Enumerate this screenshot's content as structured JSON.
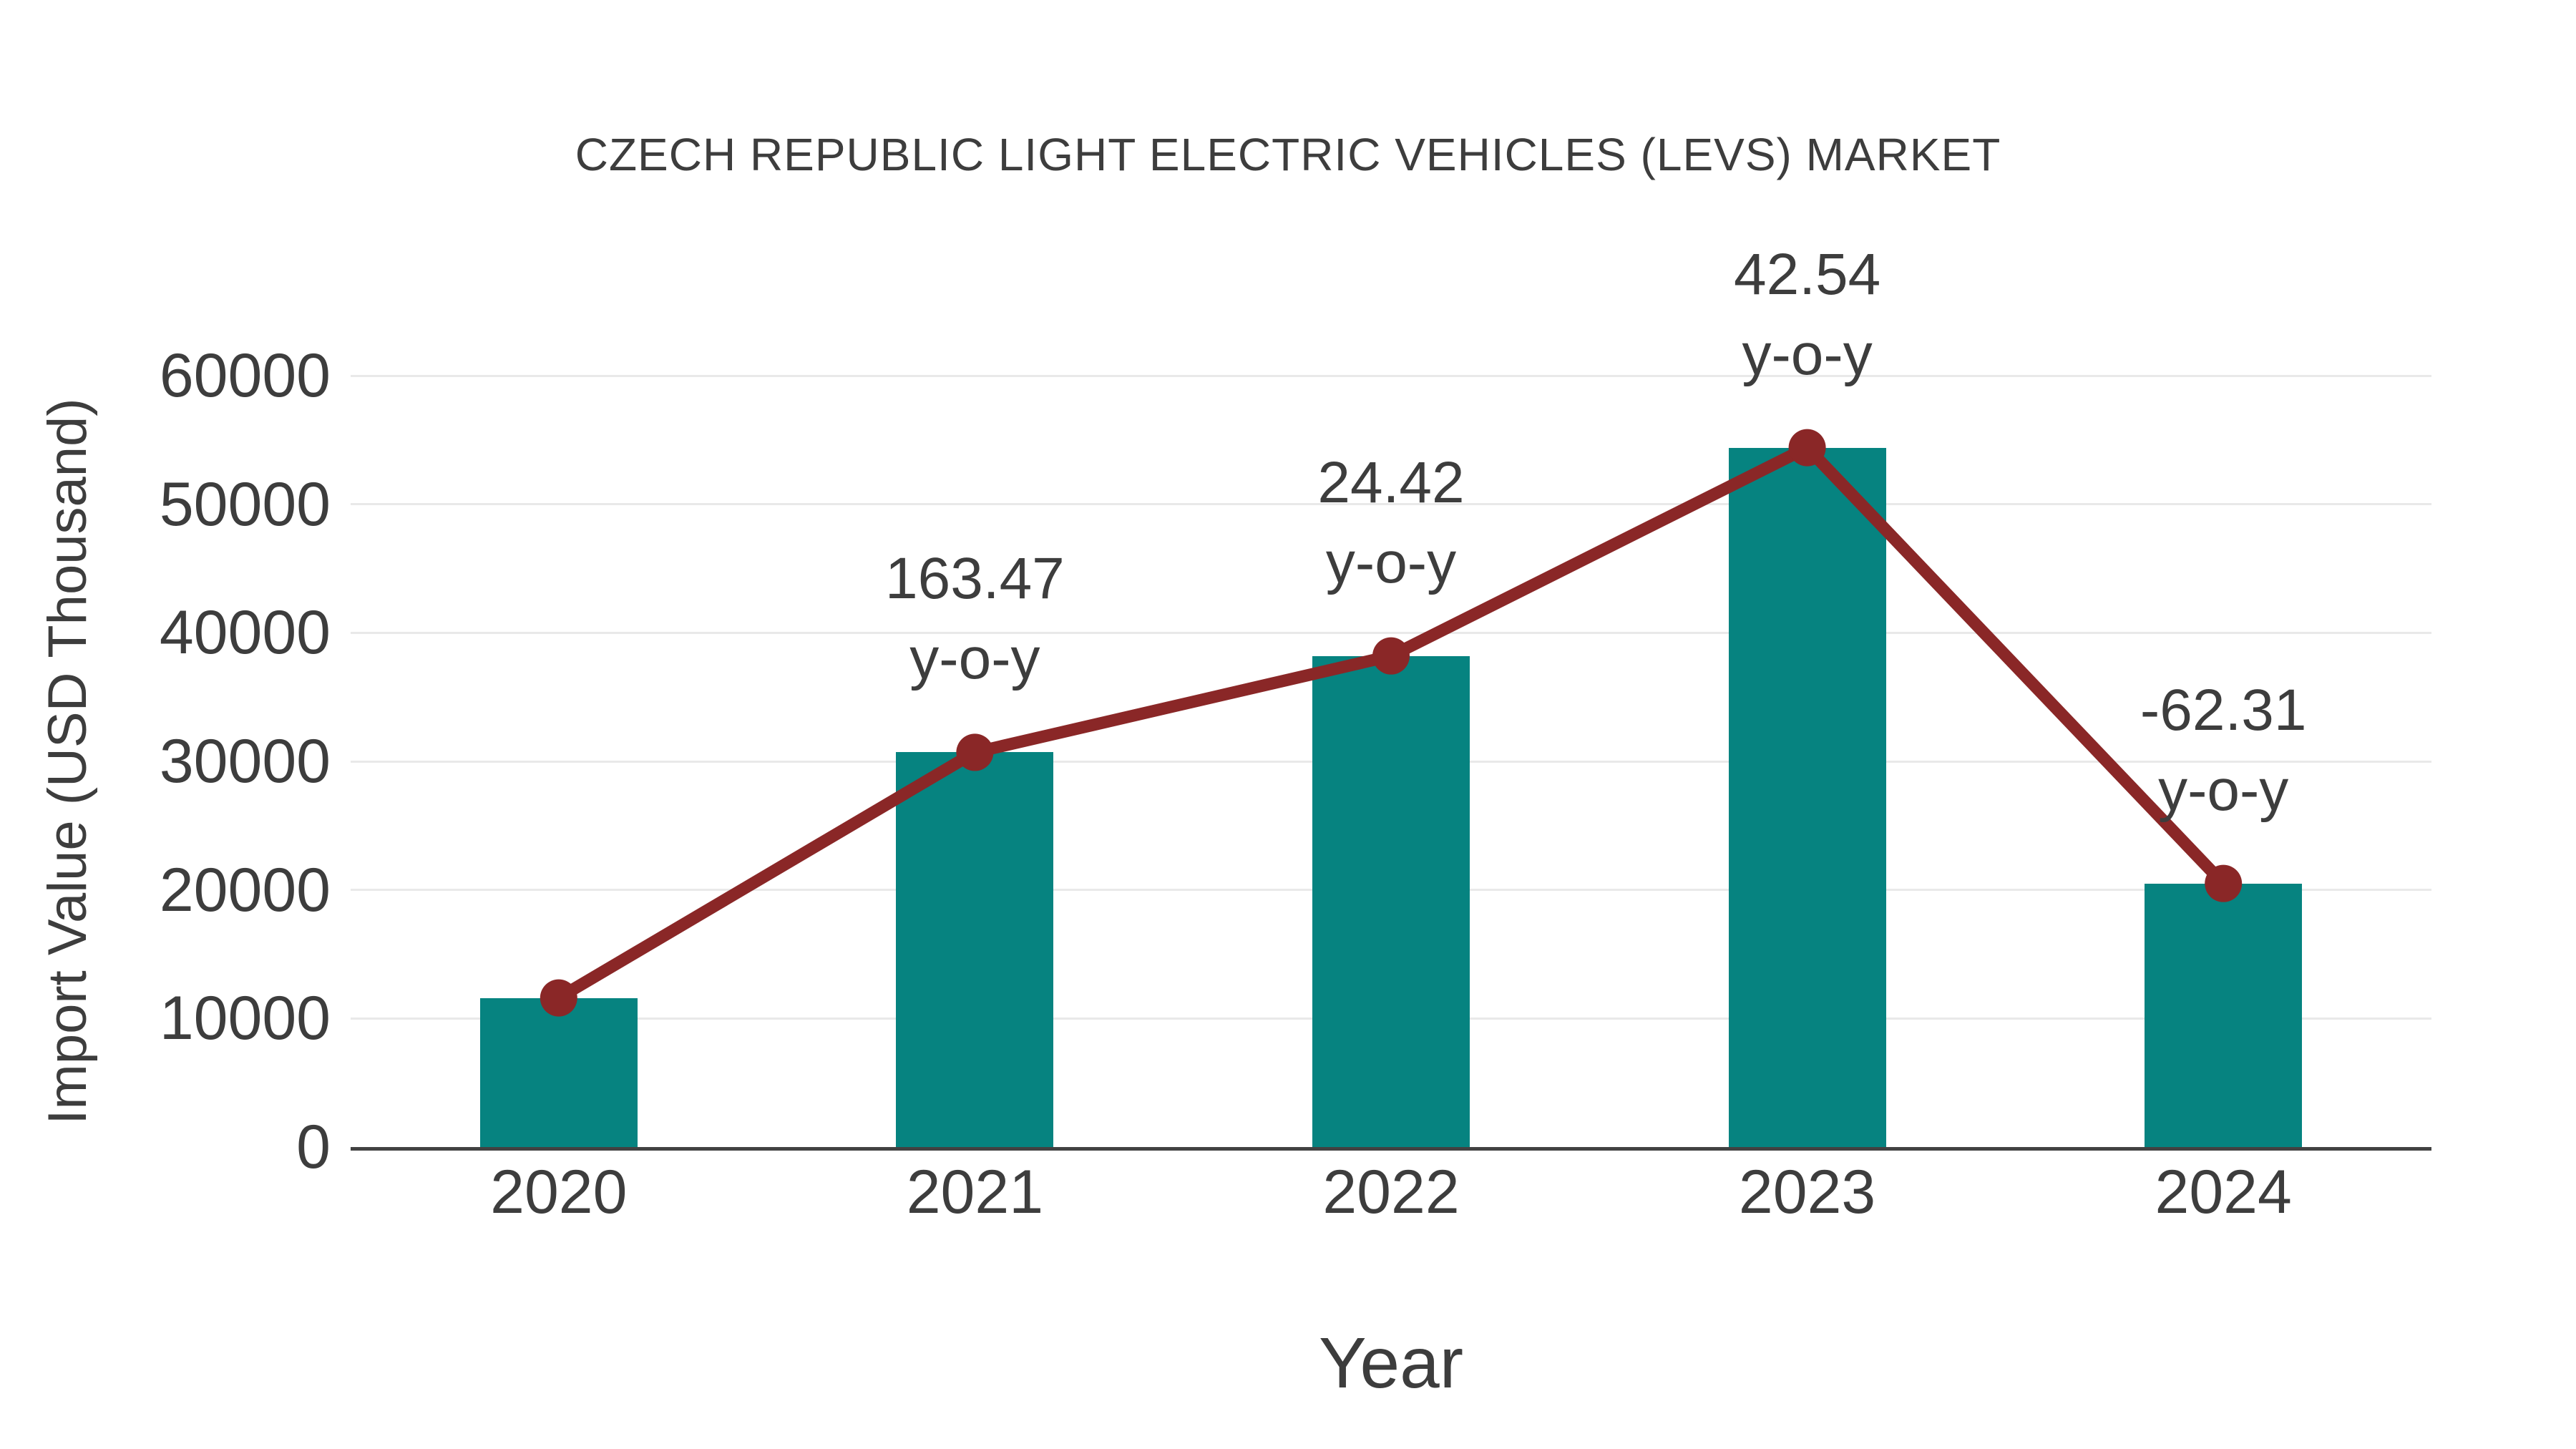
{
  "title": {
    "text": "CZECH REPUBLIC LIGHT ELECTRIC VEHICLES (LEVS) MARKET"
  },
  "axes": {
    "x_label": "Year",
    "y_label": "Import Value (USD Thousand)"
  },
  "colors": {
    "background": "#ffffff",
    "bar": "#068380",
    "line": "#8A2727",
    "marker": "#8A2727",
    "grid": "#e9e9e9",
    "axis_line": "#424242",
    "text": "#3d3d3d"
  },
  "chart_data": {
    "type": "bar",
    "title": "CZECH REPUBLIC LIGHT ELECTRIC VEHICLES (LEVS) MARKET",
    "xlabel": "Year",
    "ylabel": "Import Value (USD Thousand)",
    "categories": [
      "2020",
      "2021",
      "2022",
      "2023",
      "2024"
    ],
    "ylim": [
      0,
      60000
    ],
    "yticks": [
      0,
      10000,
      20000,
      30000,
      40000,
      50000,
      60000
    ],
    "grid": true,
    "legend_position": "none",
    "series": [
      {
        "name": "Import Value (USD Thousand)",
        "type": "bar",
        "color": "#068380",
        "values": [
          11600,
          30700,
          38200,
          54400,
          20500
        ]
      },
      {
        "name": "Import Value trend",
        "type": "line",
        "color": "#8A2727",
        "marker": "circle",
        "values": [
          11600,
          30700,
          38200,
          54400,
          20500
        ]
      }
    ],
    "yoy_percent": [
      null,
      163.47,
      24.42,
      42.54,
      -62.31
    ],
    "annotations": [
      {
        "category": "2021",
        "lines": [
          "163.47",
          "y-o-y"
        ]
      },
      {
        "category": "2022",
        "lines": [
          "24.42",
          "y-o-y"
        ]
      },
      {
        "category": "2023",
        "lines": [
          "42.54",
          "y-o-y"
        ]
      },
      {
        "category": "2024",
        "lines": [
          "-62.31",
          "y-o-y"
        ]
      }
    ]
  }
}
